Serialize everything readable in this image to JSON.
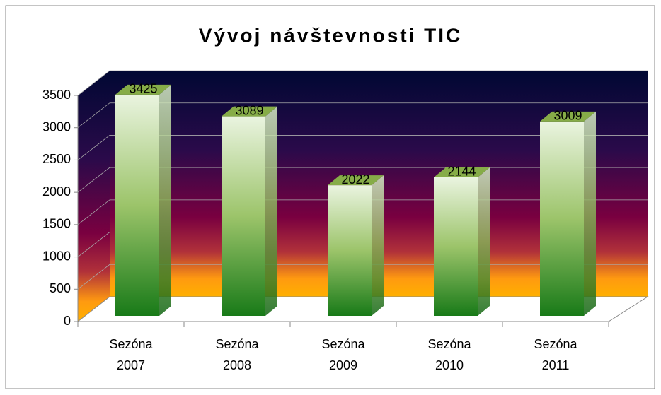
{
  "chart_data": {
    "type": "bar3d",
    "title": "Vývoj návštevnosti TIC",
    "categories": [
      "Sezóna 2007",
      "Sezóna 2008",
      "Sezóna 2009",
      "Sezóna 2010",
      "Sezóna 2011"
    ],
    "values": [
      3425,
      3089,
      2022,
      2144,
      3009
    ],
    "ylim": [
      0,
      3500
    ],
    "yticks": [
      0,
      500,
      1000,
      1500,
      2000,
      2500,
      3000,
      3500
    ],
    "grid": true
  }
}
